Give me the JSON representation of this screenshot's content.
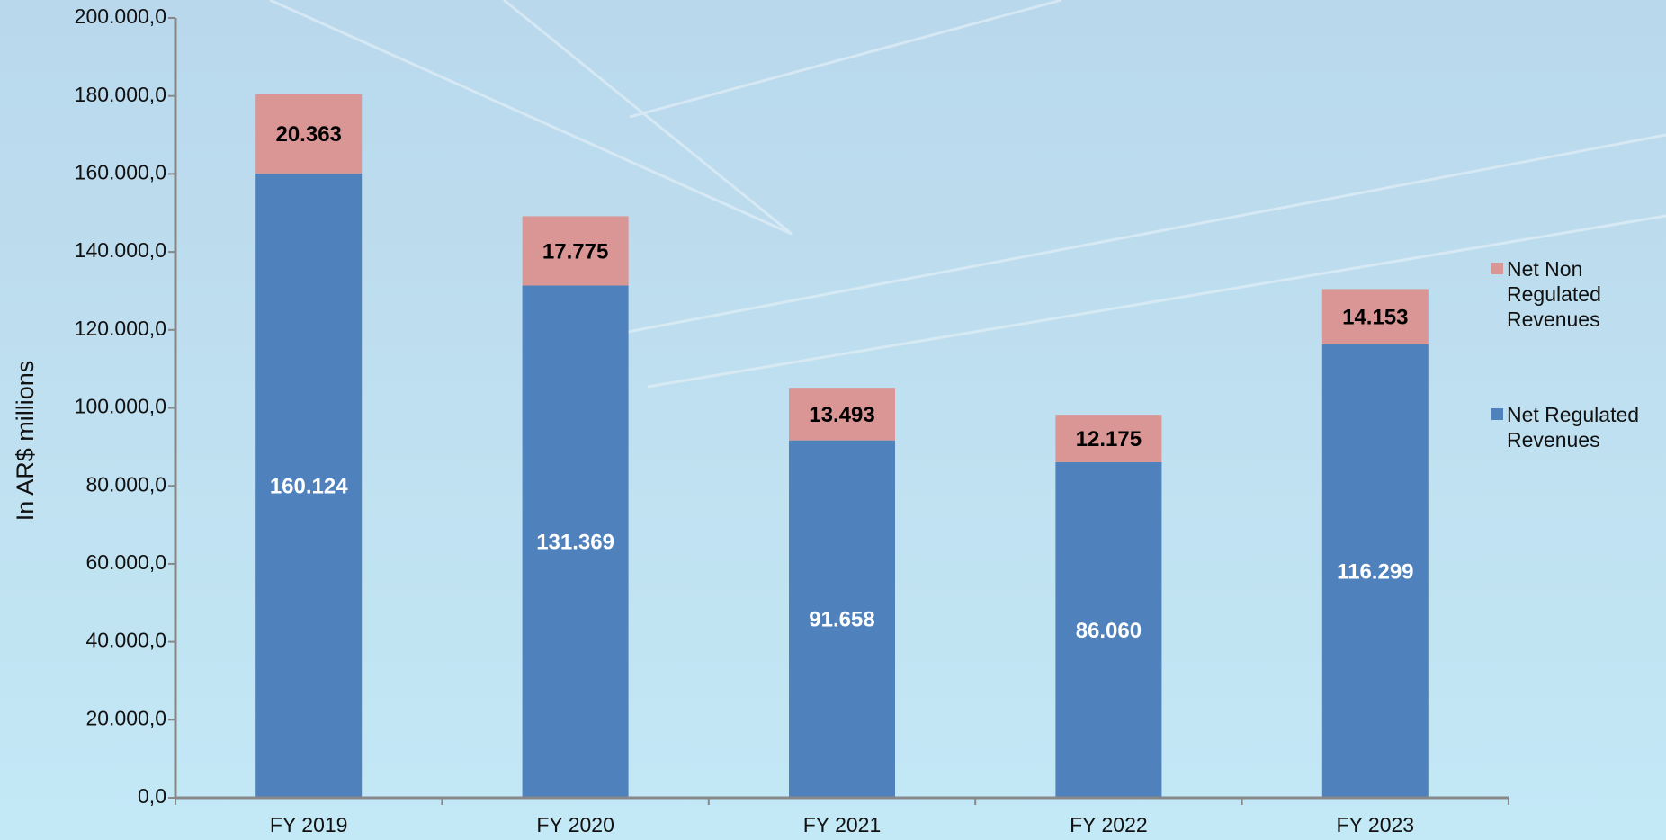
{
  "chart_data": {
    "type": "stacked_bar",
    "y_label": "In AR$ millions",
    "categories": [
      "FY 2019",
      "FY 2020",
      "FY 2021",
      "FY 2022",
      "FY 2023"
    ],
    "series": [
      {
        "name": "Net Regulated Revenues",
        "color": "#4f81bd",
        "values": [
          160124,
          131369,
          91658,
          86060,
          116299
        ],
        "value_labels": [
          "160.124",
          "131.369",
          "91.658",
          "86.060",
          "116.299"
        ]
      },
      {
        "name": "Net Non Regulated Revenues",
        "color": "#d99694",
        "values": [
          20363,
          17775,
          13493,
          12175,
          14153
        ],
        "value_labels": [
          "20.363",
          "17.775",
          "13.493",
          "12.175",
          "14.153"
        ]
      }
    ],
    "ylim": [
      0,
      200000
    ],
    "yticks": [
      {
        "value": 0,
        "label": "0,0"
      },
      {
        "value": 20000,
        "label": "20.000,0"
      },
      {
        "value": 40000,
        "label": "40.000,0"
      },
      {
        "value": 60000,
        "label": "60.000,0"
      },
      {
        "value": 80000,
        "label": "80.000,0"
      },
      {
        "value": 100000,
        "label": "100.000,0"
      },
      {
        "value": 120000,
        "label": "120.000,0"
      },
      {
        "value": 140000,
        "label": "140.000,0"
      },
      {
        "value": 160000,
        "label": "160.000,0"
      },
      {
        "value": 180000,
        "label": "180.000,0"
      },
      {
        "value": 200000,
        "label": "200.000,0"
      }
    ],
    "legend": "right"
  }
}
